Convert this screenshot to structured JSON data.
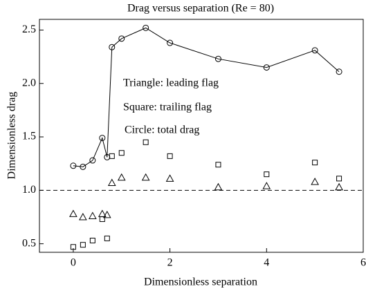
{
  "chart_data": {
    "type": "scatter",
    "title": "Drag versus separation (Re = 80)",
    "x_label": "Dimensionless separation",
    "y_label": "Dimensionless drag",
    "xlim": [
      -0.7,
      6
    ],
    "ylim": [
      0.42,
      2.6
    ],
    "xticks": [
      0,
      2,
      4,
      6
    ],
    "yticks": [
      0.5,
      {
        "value": 1,
        "label": "1.0"
      },
      1.5,
      {
        "value": 2,
        "label": "2.0"
      },
      2.5
    ],
    "x": [
      0,
      0.2,
      0.4,
      0.6,
      0.7,
      0.8,
      1.0,
      1.5,
      2,
      3,
      4,
      5,
      5.5
    ],
    "series": [
      {
        "name": "Circle: total drag",
        "color": "#000000",
        "marker": "circle",
        "line": true,
        "values": [
          1.23,
          1.22,
          1.28,
          1.49,
          1.31,
          2.34,
          2.42,
          2.52,
          2.38,
          2.23,
          2.15,
          2.31,
          2.11
        ]
      },
      {
        "name": "Square: trailing flag",
        "color": "#000000",
        "marker": "square",
        "line": false,
        "values": [
          0.47,
          0.49,
          0.53,
          0.73,
          0.55,
          1.32,
          1.35,
          1.45,
          1.32,
          1.24,
          1.15,
          1.26,
          1.11
        ]
      },
      {
        "name": "Triangle: leading flag",
        "color": "#000000",
        "marker": "triangle",
        "line": false,
        "values": [
          0.78,
          0.75,
          0.76,
          0.78,
          0.77,
          1.07,
          1.12,
          1.12,
          1.11,
          1.03,
          1.04,
          1.08,
          1.03
        ]
      }
    ],
    "reference_line": {
      "y": 1,
      "style": "dashed"
    },
    "annotations": [
      "Triangle: leading flag",
      "Square: trailing flag",
      "Circle: total drag"
    ]
  }
}
